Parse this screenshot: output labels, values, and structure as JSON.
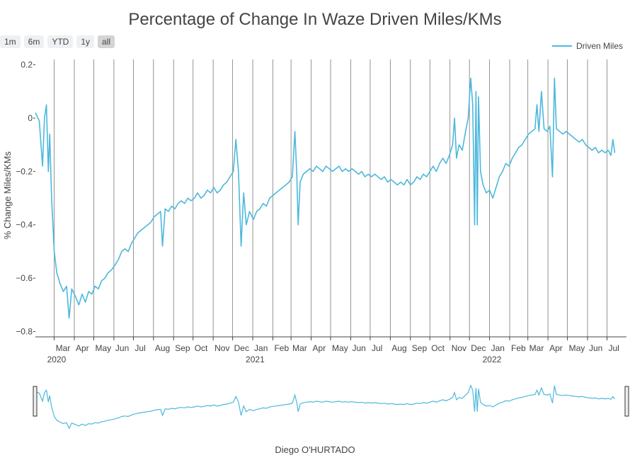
{
  "chart_data": {
    "type": "line",
    "title": "Percentage of Change In Waze Driven Miles/KMs",
    "xlabel": "",
    "ylabel": "% Change Miles/KMs",
    "credit": "Diego O'HURTADO",
    "ylim": [
      -0.82,
      0.22
    ],
    "xlim": [
      "2020-02-01",
      "2022-07-31"
    ],
    "y_ticks": [
      0.2,
      0,
      -0.2,
      -0.4,
      -0.6,
      -0.8
    ],
    "y_tick_labels": [
      "0.2",
      "0",
      "−0.2",
      "−0.4",
      "−0.6",
      "−0.8"
    ],
    "x_ticks": [
      {
        "date": "2020-03-01",
        "label": "Mar",
        "year": "2020"
      },
      {
        "date": "2020-04-01",
        "label": "Apr"
      },
      {
        "date": "2020-05-01",
        "label": "May"
      },
      {
        "date": "2020-06-01",
        "label": "Jun"
      },
      {
        "date": "2020-07-01",
        "label": "Jul"
      },
      {
        "date": "2020-08-01",
        "label": "Aug"
      },
      {
        "date": "2020-09-01",
        "label": "Sep"
      },
      {
        "date": "2020-10-01",
        "label": "Oct"
      },
      {
        "date": "2020-11-01",
        "label": "Nov"
      },
      {
        "date": "2020-12-01",
        "label": "Dec"
      },
      {
        "date": "2021-01-01",
        "label": "Jan",
        "year": "2021"
      },
      {
        "date": "2021-02-01",
        "label": "Feb"
      },
      {
        "date": "2021-03-01",
        "label": "Mar"
      },
      {
        "date": "2021-04-01",
        "label": "Apr"
      },
      {
        "date": "2021-05-01",
        "label": "May"
      },
      {
        "date": "2021-06-01",
        "label": "Jun"
      },
      {
        "date": "2021-07-01",
        "label": "Jul"
      },
      {
        "date": "2021-08-01",
        "label": "Aug"
      },
      {
        "date": "2021-09-01",
        "label": "Sep"
      },
      {
        "date": "2021-10-01",
        "label": "Oct"
      },
      {
        "date": "2021-11-01",
        "label": "Nov"
      },
      {
        "date": "2021-12-01",
        "label": "Dec"
      },
      {
        "date": "2022-01-01",
        "label": "Jan",
        "year": "2022"
      },
      {
        "date": "2022-02-01",
        "label": "Feb"
      },
      {
        "date": "2022-03-01",
        "label": "Mar"
      },
      {
        "date": "2022-04-01",
        "label": "Apr"
      },
      {
        "date": "2022-05-01",
        "label": "May"
      },
      {
        "date": "2022-06-01",
        "label": "Jun"
      },
      {
        "date": "2022-07-01",
        "label": "Jul"
      }
    ],
    "vertical_grid": true,
    "legend": {
      "position": "top-right"
    },
    "range_selector": [
      {
        "label": "1m",
        "active": false
      },
      {
        "label": "6m",
        "active": false
      },
      {
        "label": "YTD",
        "active": false
      },
      {
        "label": "1y",
        "active": false
      },
      {
        "label": "all",
        "active": true
      }
    ],
    "series": [
      {
        "name": "Driven Miles",
        "color": "#4cb8dc",
        "points": [
          [
            "2020-02-01",
            0.02
          ],
          [
            "2020-02-07",
            -0.01
          ],
          [
            "2020-02-12",
            -0.18
          ],
          [
            "2020-02-15",
            0.0
          ],
          [
            "2020-02-18",
            0.05
          ],
          [
            "2020-02-21",
            -0.2
          ],
          [
            "2020-02-23",
            -0.06
          ],
          [
            "2020-02-26",
            -0.3
          ],
          [
            "2020-03-01",
            -0.5
          ],
          [
            "2020-03-05",
            -0.58
          ],
          [
            "2020-03-10",
            -0.62
          ],
          [
            "2020-03-15",
            -0.65
          ],
          [
            "2020-03-20",
            -0.63
          ],
          [
            "2020-03-24",
            -0.75
          ],
          [
            "2020-03-28",
            -0.64
          ],
          [
            "2020-04-03",
            -0.67
          ],
          [
            "2020-04-08",
            -0.7
          ],
          [
            "2020-04-13",
            -0.66
          ],
          [
            "2020-04-18",
            -0.69
          ],
          [
            "2020-04-23",
            -0.65
          ],
          [
            "2020-04-28",
            -0.66
          ],
          [
            "2020-05-03",
            -0.63
          ],
          [
            "2020-05-08",
            -0.64
          ],
          [
            "2020-05-13",
            -0.61
          ],
          [
            "2020-05-18",
            -0.6
          ],
          [
            "2020-05-23",
            -0.58
          ],
          [
            "2020-05-28",
            -0.57
          ],
          [
            "2020-06-03",
            -0.55
          ],
          [
            "2020-06-08",
            -0.53
          ],
          [
            "2020-06-13",
            -0.5
          ],
          [
            "2020-06-18",
            -0.49
          ],
          [
            "2020-06-23",
            -0.5
          ],
          [
            "2020-06-28",
            -0.47
          ],
          [
            "2020-07-03",
            -0.45
          ],
          [
            "2020-07-08",
            -0.43
          ],
          [
            "2020-07-13",
            -0.42
          ],
          [
            "2020-07-18",
            -0.41
          ],
          [
            "2020-07-23",
            -0.4
          ],
          [
            "2020-07-28",
            -0.39
          ],
          [
            "2020-08-02",
            -0.37
          ],
          [
            "2020-08-07",
            -0.36
          ],
          [
            "2020-08-12",
            -0.35
          ],
          [
            "2020-08-15",
            -0.48
          ],
          [
            "2020-08-19",
            -0.34
          ],
          [
            "2020-08-24",
            -0.35
          ],
          [
            "2020-08-29",
            -0.33
          ],
          [
            "2020-09-03",
            -0.34
          ],
          [
            "2020-09-08",
            -0.32
          ],
          [
            "2020-09-13",
            -0.31
          ],
          [
            "2020-09-18",
            -0.32
          ],
          [
            "2020-09-23",
            -0.3
          ],
          [
            "2020-09-28",
            -0.31
          ],
          [
            "2020-10-03",
            -0.3
          ],
          [
            "2020-10-08",
            -0.28
          ],
          [
            "2020-10-13",
            -0.3
          ],
          [
            "2020-10-18",
            -0.29
          ],
          [
            "2020-10-23",
            -0.27
          ],
          [
            "2020-10-28",
            -0.28
          ],
          [
            "2020-11-02",
            -0.26
          ],
          [
            "2020-11-07",
            -0.28
          ],
          [
            "2020-11-12",
            -0.27
          ],
          [
            "2020-11-17",
            -0.25
          ],
          [
            "2020-11-22",
            -0.24
          ],
          [
            "2020-11-27",
            -0.22
          ],
          [
            "2020-12-02",
            -0.2
          ],
          [
            "2020-12-06",
            -0.08
          ],
          [
            "2020-12-10",
            -0.2
          ],
          [
            "2020-12-14",
            -0.48
          ],
          [
            "2020-12-18",
            -0.28
          ],
          [
            "2020-12-22",
            -0.4
          ],
          [
            "2020-12-27",
            -0.35
          ],
          [
            "2021-01-02",
            -0.38
          ],
          [
            "2021-01-07",
            -0.35
          ],
          [
            "2021-01-12",
            -0.34
          ],
          [
            "2021-01-17",
            -0.32
          ],
          [
            "2021-01-22",
            -0.33
          ],
          [
            "2021-01-27",
            -0.3
          ],
          [
            "2021-02-01",
            -0.29
          ],
          [
            "2021-02-06",
            -0.28
          ],
          [
            "2021-02-11",
            -0.27
          ],
          [
            "2021-02-16",
            -0.26
          ],
          [
            "2021-02-21",
            -0.25
          ],
          [
            "2021-02-26",
            -0.24
          ],
          [
            "2021-03-03",
            -0.22
          ],
          [
            "2021-03-07",
            -0.05
          ],
          [
            "2021-03-10",
            -0.22
          ],
          [
            "2021-03-12",
            -0.4
          ],
          [
            "2021-03-15",
            -0.24
          ],
          [
            "2021-03-20",
            -0.21
          ],
          [
            "2021-03-25",
            -0.2
          ],
          [
            "2021-03-30",
            -0.19
          ],
          [
            "2021-04-04",
            -0.2
          ],
          [
            "2021-04-09",
            -0.18
          ],
          [
            "2021-04-14",
            -0.19
          ],
          [
            "2021-04-19",
            -0.2
          ],
          [
            "2021-04-24",
            -0.18
          ],
          [
            "2021-04-29",
            -0.19
          ],
          [
            "2021-05-04",
            -0.2
          ],
          [
            "2021-05-09",
            -0.19
          ],
          [
            "2021-05-14",
            -0.18
          ],
          [
            "2021-05-19",
            -0.2
          ],
          [
            "2021-05-24",
            -0.19
          ],
          [
            "2021-05-29",
            -0.2
          ],
          [
            "2021-06-03",
            -0.19
          ],
          [
            "2021-06-08",
            -0.2
          ],
          [
            "2021-06-13",
            -0.21
          ],
          [
            "2021-06-18",
            -0.2
          ],
          [
            "2021-06-23",
            -0.22
          ],
          [
            "2021-06-28",
            -0.21
          ],
          [
            "2021-07-03",
            -0.22
          ],
          [
            "2021-07-08",
            -0.21
          ],
          [
            "2021-07-13",
            -0.22
          ],
          [
            "2021-07-18",
            -0.23
          ],
          [
            "2021-07-23",
            -0.22
          ],
          [
            "2021-07-28",
            -0.24
          ],
          [
            "2021-08-02",
            -0.23
          ],
          [
            "2021-08-07",
            -0.24
          ],
          [
            "2021-08-12",
            -0.25
          ],
          [
            "2021-08-17",
            -0.24
          ],
          [
            "2021-08-22",
            -0.25
          ],
          [
            "2021-08-27",
            -0.23
          ],
          [
            "2021-09-01",
            -0.25
          ],
          [
            "2021-09-06",
            -0.24
          ],
          [
            "2021-09-11",
            -0.22
          ],
          [
            "2021-09-16",
            -0.23
          ],
          [
            "2021-09-21",
            -0.21
          ],
          [
            "2021-09-26",
            -0.22
          ],
          [
            "2021-10-01",
            -0.2
          ],
          [
            "2021-10-06",
            -0.18
          ],
          [
            "2021-10-11",
            -0.2
          ],
          [
            "2021-10-16",
            -0.17
          ],
          [
            "2021-10-21",
            -0.15
          ],
          [
            "2021-10-26",
            -0.17
          ],
          [
            "2021-10-31",
            -0.14
          ],
          [
            "2021-11-05",
            -0.1
          ],
          [
            "2021-11-08",
            0.0
          ],
          [
            "2021-11-11",
            -0.15
          ],
          [
            "2021-11-15",
            -0.1
          ],
          [
            "2021-11-20",
            -0.12
          ],
          [
            "2021-11-25",
            -0.05
          ],
          [
            "2021-11-29",
            0.0
          ],
          [
            "2021-12-03",
            0.15
          ],
          [
            "2021-12-06",
            0.05
          ],
          [
            "2021-12-09",
            -0.4
          ],
          [
            "2021-12-11",
            0.1
          ],
          [
            "2021-12-13",
            -0.4
          ],
          [
            "2021-12-15",
            0.08
          ],
          [
            "2021-12-18",
            -0.2
          ],
          [
            "2021-12-22",
            -0.25
          ],
          [
            "2021-12-27",
            -0.28
          ],
          [
            "2022-01-01",
            -0.27
          ],
          [
            "2022-01-06",
            -0.3
          ],
          [
            "2022-01-11",
            -0.26
          ],
          [
            "2022-01-16",
            -0.22
          ],
          [
            "2022-01-21",
            -0.2
          ],
          [
            "2022-01-26",
            -0.17
          ],
          [
            "2022-01-31",
            -0.18
          ],
          [
            "2022-02-05",
            -0.15
          ],
          [
            "2022-02-10",
            -0.13
          ],
          [
            "2022-02-15",
            -0.11
          ],
          [
            "2022-02-20",
            -0.1
          ],
          [
            "2022-02-25",
            -0.08
          ],
          [
            "2022-03-02",
            -0.06
          ],
          [
            "2022-03-07",
            -0.05
          ],
          [
            "2022-03-12",
            -0.04
          ],
          [
            "2022-03-15",
            0.05
          ],
          [
            "2022-03-18",
            -0.05
          ],
          [
            "2022-03-22",
            0.1
          ],
          [
            "2022-03-26",
            -0.04
          ],
          [
            "2022-03-31",
            -0.05
          ],
          [
            "2022-04-04",
            -0.03
          ],
          [
            "2022-04-08",
            -0.22
          ],
          [
            "2022-04-11",
            0.15
          ],
          [
            "2022-04-14",
            -0.04
          ],
          [
            "2022-04-19",
            -0.05
          ],
          [
            "2022-04-24",
            -0.06
          ],
          [
            "2022-04-29",
            -0.05
          ],
          [
            "2022-05-04",
            -0.06
          ],
          [
            "2022-05-09",
            -0.07
          ],
          [
            "2022-05-14",
            -0.08
          ],
          [
            "2022-05-19",
            -0.09
          ],
          [
            "2022-05-24",
            -0.08
          ],
          [
            "2022-05-29",
            -0.1
          ],
          [
            "2022-06-03",
            -0.11
          ],
          [
            "2022-06-08",
            -0.12
          ],
          [
            "2022-06-13",
            -0.11
          ],
          [
            "2022-06-18",
            -0.13
          ],
          [
            "2022-06-23",
            -0.12
          ],
          [
            "2022-06-28",
            -0.13
          ],
          [
            "2022-07-03",
            -0.12
          ],
          [
            "2022-07-07",
            -0.14
          ],
          [
            "2022-07-10",
            -0.08
          ],
          [
            "2022-07-13",
            -0.13
          ]
        ]
      }
    ]
  }
}
